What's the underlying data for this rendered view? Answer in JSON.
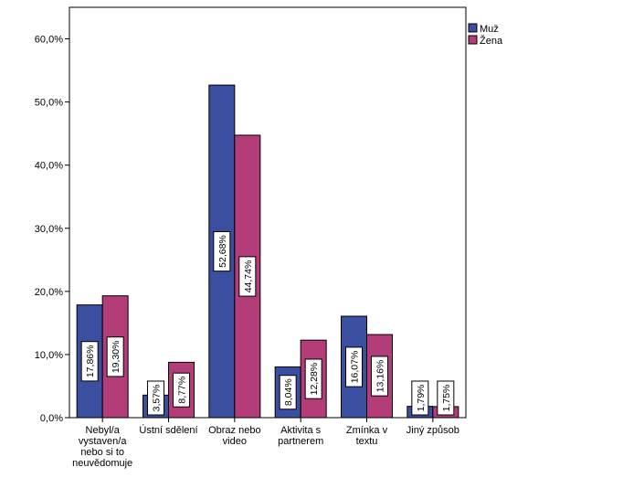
{
  "chart_data": {
    "type": "bar",
    "categories": [
      [
        "Nebyl/a",
        "vystaven/a",
        "nebo si to",
        "neuvědomuje"
      ],
      [
        "Ústní sdělení"
      ],
      [
        "Obraz nebo",
        "video"
      ],
      [
        "Aktivita s",
        "partnerem"
      ],
      [
        "Zmínka v",
        "textu"
      ],
      [
        "Jiný způsob"
      ]
    ],
    "series": [
      {
        "name": "Muž",
        "color": "#3a4fa0",
        "values": [
          17.86,
          3.57,
          52.68,
          8.04,
          16.07,
          1.79
        ],
        "labels": [
          "17,86%",
          "3,57%",
          "52,68%",
          "8,04%",
          "16,07%",
          "1,79%"
        ]
      },
      {
        "name": "Žena",
        "color": "#b33d78",
        "values": [
          19.3,
          8.77,
          44.74,
          12.28,
          13.16,
          1.75
        ],
        "labels": [
          "19,30%",
          "8,77%",
          "44,74%",
          "12,28%",
          "13,16%",
          "1,75%"
        ]
      }
    ],
    "ylim": [
      0,
      65
    ],
    "yticks": [
      0,
      10,
      20,
      30,
      40,
      50,
      60
    ],
    "ytick_labels": [
      "0,0%",
      "10,0%",
      "20,0%",
      "30,0%",
      "40,0%",
      "50,0%",
      "60,0%"
    ],
    "legend_position": "top-right",
    "grid": false
  }
}
